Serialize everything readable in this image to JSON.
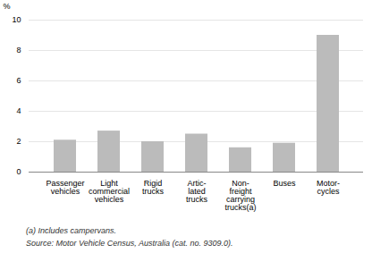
{
  "chart_data": {
    "type": "bar",
    "categories": [
      "Passenger\nvehicles",
      "Light\ncommercial\nvehicles",
      "Rigid\ntrucks",
      "Artic-\nlated\ntrucks",
      "Non-\nfreight\ncarrying\ntrucks(a)",
      "Buses",
      "Motor-\ncycles"
    ],
    "values": [
      2.1,
      2.7,
      2.0,
      2.5,
      1.6,
      1.9,
      9.0
    ],
    "color": "#bbbbbb",
    "ylabel": "%",
    "ylim": [
      0,
      10
    ],
    "yticks": [
      0,
      2,
      4,
      6,
      8,
      10
    ],
    "grid": true,
    "annotations": [
      "(a) Includes campervans.",
      "Source: Motor Vehicle Census, Australia (cat.  no.  9309.0)."
    ]
  }
}
